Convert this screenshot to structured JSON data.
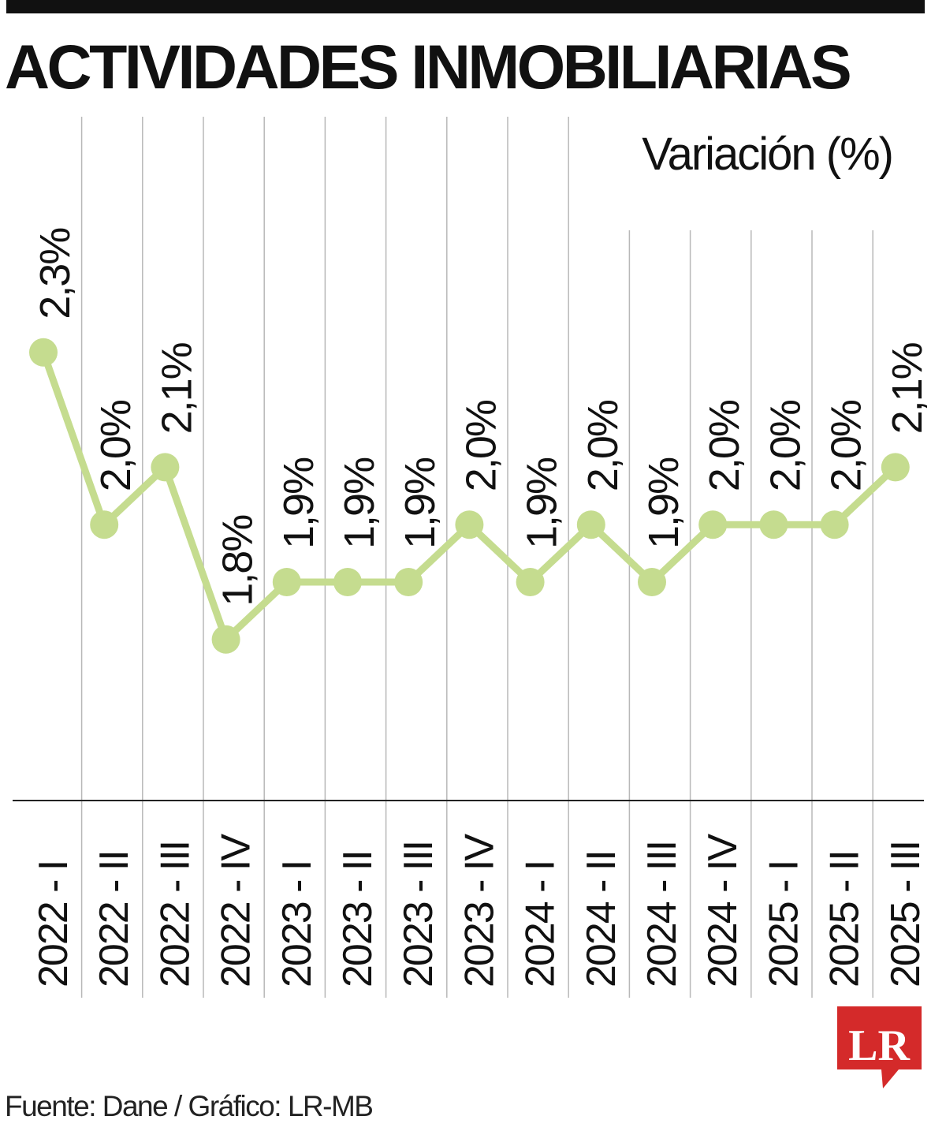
{
  "header": {
    "title": "ACTIVIDADES INMOBILIARIAS"
  },
  "footer": {
    "source": "Fuente: Dane / Gráfico: LR-MB",
    "logo_text": "LR"
  },
  "colors": {
    "line": "#c5dc8f",
    "marker": "#c5dc8f",
    "grid": "#b8b8b8",
    "text": "#111111",
    "logo_red": "#d42a2a"
  },
  "chart_data": {
    "type": "line",
    "title": "ACTIVIDADES INMOBILIARIAS",
    "ylabel": "Variación (%)",
    "xlabel": "",
    "categories": [
      "2022 - I",
      "2022 - II",
      "2022 - III",
      "2022 - IV",
      "2023 - I",
      "2023 - II",
      "2023 - III",
      "2023 - IV",
      "2024 - I",
      "2024 - II",
      "2024 - III",
      "2024 - IV",
      "2025 - I",
      "2025 - II",
      "2025 - III"
    ],
    "values": [
      2.3,
      2.0,
      2.1,
      1.8,
      1.9,
      1.9,
      1.9,
      2.0,
      1.9,
      2.0,
      1.9,
      2.0,
      2.0,
      2.0,
      2.1
    ],
    "data_labels": [
      "2,3%",
      "2,0%",
      "2,1%",
      "1,8%",
      "1,9%",
      "1,9%",
      "1,9%",
      "2,0%",
      "1,9%",
      "2,0%",
      "1,9%",
      "2,0%",
      "2,0%",
      "2,0%",
      "2,1%"
    ],
    "grid": true,
    "grid_orientation": "vertical",
    "label_orientation": "rotated-vertical"
  }
}
